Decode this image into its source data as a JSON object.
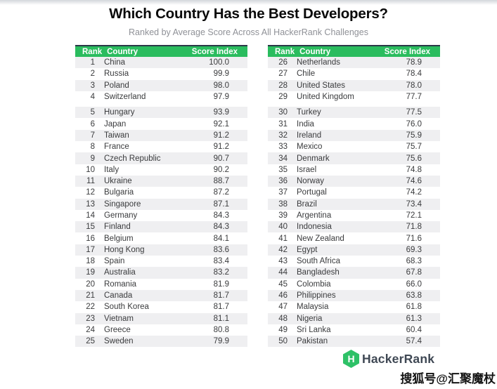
{
  "title": "Which Country Has the Best Developers?",
  "subtitle": "Ranked by Average Score Across All HackerRank Challenges",
  "columns": [
    "Rank",
    "Country",
    "Score Index"
  ],
  "footer": {
    "brand": "HackerRank",
    "logo_letter": "H"
  },
  "watermark": "搜狐号@汇聚魔杖",
  "colors": {
    "header_green": "#2abc5e",
    "header_top_border": "#2b3947",
    "row_stripe": "#efeff1",
    "logo_green": "#2ec167",
    "title_text": "#090909",
    "subtitle_text": "#8f9197",
    "cell_text": "#3a3b3d"
  },
  "chart_data": {
    "type": "table",
    "title": "Which Country Has the Best Developers?",
    "subtitle": "Ranked by Average Score Across All HackerRank Challenges",
    "columns": [
      "Rank",
      "Country",
      "Score Index"
    ],
    "layout": "two side-by-side tables, ranks 1-25 left and 26-50 right, zebra striping, visual gap after 4th row of each table",
    "rows": [
      [
        1,
        "China",
        "100.0"
      ],
      [
        2,
        "Russia",
        "99.9"
      ],
      [
        3,
        "Poland",
        "98.0"
      ],
      [
        4,
        "Switzerland",
        "97.9"
      ],
      [
        5,
        "Hungary",
        "93.9"
      ],
      [
        6,
        "Japan",
        "92.1"
      ],
      [
        7,
        "Taiwan",
        "91.2"
      ],
      [
        8,
        "France",
        "91.2"
      ],
      [
        9,
        "Czech Republic",
        "90.7"
      ],
      [
        10,
        "Italy",
        "90.2"
      ],
      [
        11,
        "Ukraine",
        "88.7"
      ],
      [
        12,
        "Bulgaria",
        "87.2"
      ],
      [
        13,
        "Singapore",
        "87.1"
      ],
      [
        14,
        "Germany",
        "84.3"
      ],
      [
        15,
        "Finland",
        "84.3"
      ],
      [
        16,
        "Belgium",
        "84.1"
      ],
      [
        17,
        "Hong Kong",
        "83.6"
      ],
      [
        18,
        "Spain",
        "83.4"
      ],
      [
        19,
        "Australia",
        "83.2"
      ],
      [
        20,
        "Romania",
        "81.9"
      ],
      [
        21,
        "Canada",
        "81.7"
      ],
      [
        22,
        "South Korea",
        "81.7"
      ],
      [
        23,
        "Vietnam",
        "81.1"
      ],
      [
        24,
        "Greece",
        "80.8"
      ],
      [
        25,
        "Sweden",
        "79.9"
      ],
      [
        26,
        "Netherlands",
        "78.9"
      ],
      [
        27,
        "Chile",
        "78.4"
      ],
      [
        28,
        "United States",
        "78.0"
      ],
      [
        29,
        "United Kingdom",
        "77.7"
      ],
      [
        30,
        "Turkey",
        "77.5"
      ],
      [
        31,
        "India",
        "76.0"
      ],
      [
        32,
        "Ireland",
        "75.9"
      ],
      [
        33,
        "Mexico",
        "75.7"
      ],
      [
        34,
        "Denmark",
        "75.6"
      ],
      [
        35,
        "Israel",
        "74.8"
      ],
      [
        36,
        "Norway",
        "74.6"
      ],
      [
        37,
        "Portugal",
        "74.2"
      ],
      [
        38,
        "Brazil",
        "73.4"
      ],
      [
        39,
        "Argentina",
        "72.1"
      ],
      [
        40,
        "Indonesia",
        "71.8"
      ],
      [
        41,
        "New Zealand",
        "71.6"
      ],
      [
        42,
        "Egypt",
        "69.3"
      ],
      [
        43,
        "South Africa",
        "68.3"
      ],
      [
        44,
        "Bangladesh",
        "67.8"
      ],
      [
        45,
        "Colombia",
        "66.0"
      ],
      [
        46,
        "Philippines",
        "63.8"
      ],
      [
        47,
        "Malaysia",
        "61.8"
      ],
      [
        48,
        "Nigeria",
        "61.3"
      ],
      [
        49,
        "Sri Lanka",
        "60.4"
      ],
      [
        50,
        "Pakistan",
        "57.4"
      ]
    ]
  }
}
